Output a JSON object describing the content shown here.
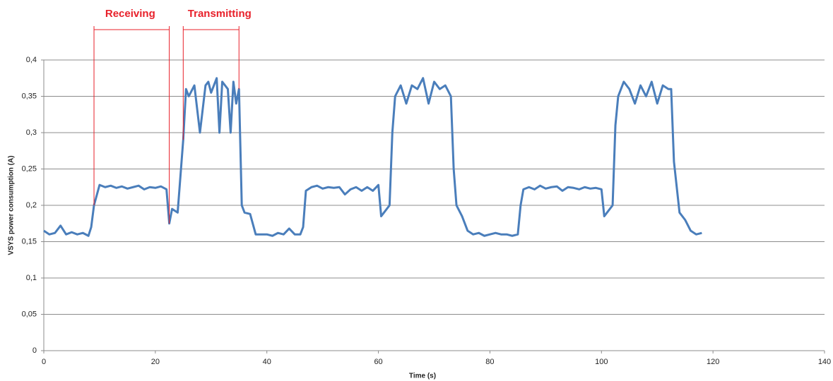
{
  "chart_data": {
    "type": "line",
    "x_label": "Time (s)",
    "y_label": "VSYS power consumption  (A)",
    "annotations": [
      {
        "text": "Receiving",
        "x": [
          9,
          22.5
        ]
      },
      {
        "text": "Transmitting",
        "x": [
          25,
          35
        ]
      }
    ],
    "annotation_color": "#e8202a",
    "x": [
      0,
      1,
      2,
      3,
      4,
      5,
      6,
      7,
      8,
      8.5,
      9,
      10,
      11,
      12,
      13,
      14,
      15,
      16,
      17,
      18,
      19,
      20,
      21,
      22,
      22.5,
      23,
      24,
      25,
      25.5,
      26,
      27,
      28,
      29,
      29.5,
      30,
      31,
      31.5,
      32,
      33,
      33.5,
      34,
      34.5,
      35,
      35.5,
      36,
      37,
      38,
      39,
      40,
      41,
      42,
      43,
      44,
      45,
      46,
      46.5,
      47,
      48,
      49,
      50,
      51,
      52,
      53,
      54,
      55,
      56,
      57,
      58,
      59,
      60,
      60.5,
      61,
      62,
      62.5,
      63,
      64,
      65,
      66,
      67,
      68,
      69,
      70,
      71,
      72,
      73,
      73.5,
      74,
      75,
      76,
      77,
      78,
      79,
      80,
      81,
      82,
      83,
      84,
      85,
      85.5,
      86,
      87,
      88,
      89,
      90,
      91,
      92,
      93,
      94,
      95,
      96,
      97,
      98,
      99,
      100,
      100.5,
      101,
      102,
      102.5,
      103,
      104,
      105,
      106,
      107,
      108,
      109,
      110,
      111,
      112,
      112.5,
      113,
      114,
      115,
      116,
      117,
      118
    ],
    "series": [
      {
        "color": "#4a7ebb",
        "values": [
          0.165,
          0.16,
          0.162,
          0.172,
          0.16,
          0.163,
          0.16,
          0.162,
          0.158,
          0.17,
          0.2,
          0.228,
          0.225,
          0.227,
          0.224,
          0.226,
          0.223,
          0.225,
          0.227,
          0.222,
          0.225,
          0.224,
          0.226,
          0.222,
          0.175,
          0.195,
          0.19,
          0.29,
          0.36,
          0.35,
          0.365,
          0.3,
          0.365,
          0.37,
          0.355,
          0.375,
          0.3,
          0.37,
          0.36,
          0.3,
          0.37,
          0.34,
          0.36,
          0.2,
          0.19,
          0.188,
          0.16,
          0.16,
          0.16,
          0.158,
          0.162,
          0.16,
          0.168,
          0.16,
          0.16,
          0.17,
          0.22,
          0.225,
          0.227,
          0.223,
          0.225,
          0.224,
          0.225,
          0.215,
          0.222,
          0.225,
          0.22,
          0.225,
          0.22,
          0.228,
          0.185,
          0.19,
          0.2,
          0.3,
          0.35,
          0.365,
          0.34,
          0.365,
          0.36,
          0.375,
          0.34,
          0.37,
          0.36,
          0.365,
          0.35,
          0.25,
          0.2,
          0.185,
          0.165,
          0.16,
          0.162,
          0.158,
          0.16,
          0.162,
          0.16,
          0.16,
          0.158,
          0.16,
          0.2,
          0.222,
          0.225,
          0.222,
          0.227,
          0.223,
          0.225,
          0.226,
          0.22,
          0.225,
          0.224,
          0.222,
          0.225,
          0.223,
          0.224,
          0.222,
          0.185,
          0.19,
          0.2,
          0.31,
          0.35,
          0.37,
          0.36,
          0.34,
          0.365,
          0.35,
          0.37,
          0.34,
          0.365,
          0.36,
          0.36,
          0.26,
          0.19,
          0.18,
          0.165,
          0.16,
          0.162
        ]
      }
    ],
    "xlim": [
      0,
      140
    ],
    "xticks": [
      0,
      20,
      40,
      60,
      80,
      100,
      120,
      140
    ],
    "ylim": [
      0,
      0.4
    ],
    "yticks": [
      0,
      {
        "value": 0.05,
        "label": "0,05"
      },
      {
        "value": 0.1,
        "label": "0,1"
      },
      {
        "value": 0.15,
        "label": "0,15"
      },
      {
        "value": 0.2,
        "label": "0,2"
      },
      {
        "value": 0.25,
        "label": "0,25"
      },
      {
        "value": 0.3,
        "label": "0,3"
      },
      {
        "value": 0.35,
        "label": "0,35"
      },
      {
        "value": 0.4,
        "label": "0,4"
      }
    ],
    "grid": true
  }
}
